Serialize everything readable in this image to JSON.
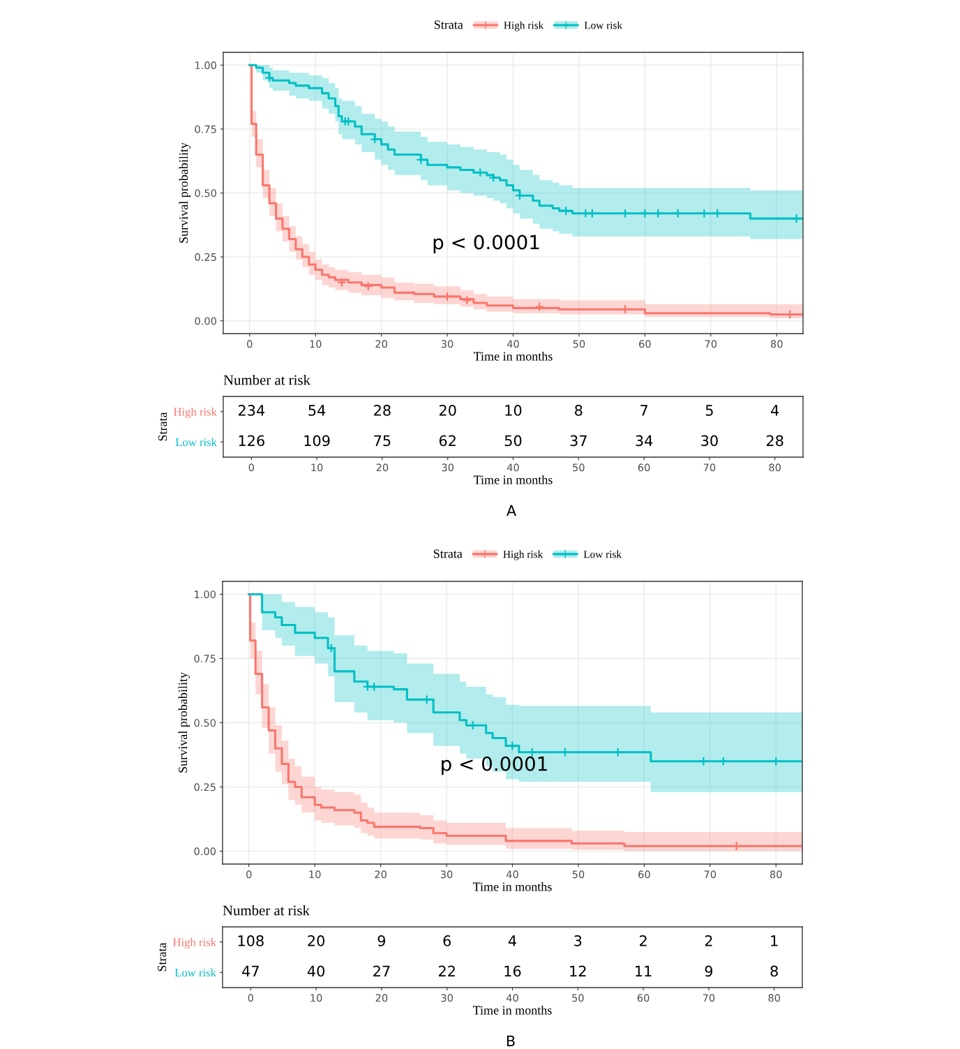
{
  "chart_data": [
    {
      "type": "step",
      "legend": "top",
      "legend_title": "Strata",
      "xlabel": "Time in months",
      "ylabel": "Survival probability",
      "xlim": [
        -4,
        84
      ],
      "xticks": [
        0,
        10,
        20,
        30,
        40,
        50,
        60,
        70,
        80
      ],
      "ylim": [
        -0.05,
        1.05
      ],
      "yticks": [
        {
          "value": 0,
          "label": "0.00"
        },
        {
          "value": 0.25,
          "label": "0.25"
        },
        {
          "value": 0.5,
          "label": "0.50"
        },
        {
          "value": 0.75,
          "label": "0.75"
        },
        {
          "value": 1,
          "label": "1.00"
        }
      ],
      "grid": true,
      "annotations": [
        "p < 0.0001"
      ],
      "series": [
        {
          "name": "High risk",
          "color": "#f8766d",
          "x": [
            0,
            0.3,
            1,
            2,
            3,
            4,
            5,
            6,
            7,
            8,
            9,
            10,
            11,
            12,
            13,
            15,
            17,
            20,
            22,
            25,
            28,
            32,
            34,
            36,
            40,
            47,
            60,
            79,
            84
          ],
          "values": [
            1,
            0.77,
            0.65,
            0.53,
            0.46,
            0.4,
            0.36,
            0.32,
            0.28,
            0.25,
            0.22,
            0.2,
            0.18,
            0.17,
            0.16,
            0.15,
            0.14,
            0.13,
            0.11,
            0.105,
            0.095,
            0.085,
            0.07,
            0.06,
            0.05,
            0.045,
            0.03,
            0.025,
            0.025
          ],
          "lower": [
            1,
            0.72,
            0.6,
            0.48,
            0.41,
            0.35,
            0.31,
            0.27,
            0.24,
            0.21,
            0.18,
            0.16,
            0.14,
            0.13,
            0.12,
            0.11,
            0.1,
            0.09,
            0.08,
            0.07,
            0.065,
            0.055,
            0.045,
            0.035,
            0.03,
            0.025,
            0.015,
            0.01,
            0.01
          ],
          "upper": [
            1,
            0.82,
            0.71,
            0.59,
            0.52,
            0.46,
            0.41,
            0.37,
            0.33,
            0.3,
            0.27,
            0.24,
            0.22,
            0.21,
            0.2,
            0.19,
            0.18,
            0.17,
            0.15,
            0.145,
            0.135,
            0.12,
            0.105,
            0.095,
            0.085,
            0.08,
            0.065,
            0.065,
            0.065
          ]
        },
        {
          "name": "Low risk",
          "color": "#00bfc4",
          "x": [
            0,
            1,
            2,
            3,
            3.5,
            6,
            7,
            9,
            11,
            12,
            13,
            13.5,
            14,
            16,
            17,
            19,
            20,
            21,
            22,
            26,
            27,
            30,
            32,
            34,
            36,
            37,
            38,
            39,
            40,
            41,
            43,
            44,
            46,
            47,
            49,
            76,
            84
          ],
          "values": [
            1,
            0.99,
            0.97,
            0.95,
            0.94,
            0.93,
            0.92,
            0.91,
            0.89,
            0.87,
            0.84,
            0.8,
            0.78,
            0.76,
            0.73,
            0.71,
            0.69,
            0.67,
            0.65,
            0.63,
            0.61,
            0.6,
            0.59,
            0.58,
            0.57,
            0.56,
            0.55,
            0.53,
            0.51,
            0.49,
            0.47,
            0.45,
            0.44,
            0.43,
            0.42,
            0.4,
            0.4
          ],
          "lower": [
            1,
            0.97,
            0.94,
            0.91,
            0.9,
            0.88,
            0.87,
            0.86,
            0.83,
            0.81,
            0.78,
            0.73,
            0.71,
            0.69,
            0.66,
            0.63,
            0.61,
            0.59,
            0.57,
            0.55,
            0.53,
            0.51,
            0.5,
            0.49,
            0.48,
            0.47,
            0.46,
            0.44,
            0.42,
            0.4,
            0.38,
            0.36,
            0.35,
            0.34,
            0.33,
            0.32,
            0.32
          ],
          "upper": [
            1,
            1,
            1,
            0.99,
            0.98,
            0.97,
            0.97,
            0.96,
            0.95,
            0.93,
            0.91,
            0.87,
            0.86,
            0.84,
            0.81,
            0.79,
            0.78,
            0.76,
            0.74,
            0.72,
            0.7,
            0.69,
            0.68,
            0.67,
            0.66,
            0.66,
            0.65,
            0.63,
            0.61,
            0.59,
            0.57,
            0.55,
            0.54,
            0.53,
            0.52,
            0.51,
            0.51
          ]
        },
        {
          "type": "scatter",
          "marker": "cross",
          "color": "#f8766d",
          "x": [
            14,
            18,
            30,
            33,
            44,
            57,
            82
          ],
          "values": [
            0.15,
            0.135,
            0.095,
            0.08,
            0.055,
            0.045,
            0.025
          ]
        },
        {
          "type": "scatter",
          "marker": "cross",
          "color": "#00bfc4",
          "x": [
            3,
            14.5,
            15,
            19,
            26,
            35,
            37,
            41,
            48,
            51,
            52,
            57,
            60,
            62,
            65,
            69,
            71,
            83
          ],
          "values": [
            0.95,
            0.78,
            0.78,
            0.71,
            0.63,
            0.58,
            0.56,
            0.49,
            0.43,
            0.42,
            0.42,
            0.42,
            0.42,
            0.42,
            0.42,
            0.42,
            0.42,
            0.4
          ]
        }
      ]
    },
    {
      "type": "heatmap",
      "title": "Number at risk",
      "ylabel": "Strata",
      "xlabel": "Time in months",
      "data_labels": true,
      "annotations": [
        "A"
      ],
      "categories": [
        "0",
        "10",
        "20",
        "30",
        "40",
        "50",
        "60",
        "70",
        "80"
      ],
      "y_categories": [
        "High risk",
        "Low risk"
      ],
      "cells": [
        [
          234,
          54,
          28,
          20,
          10,
          8,
          7,
          5,
          4
        ],
        [
          126,
          109,
          75,
          62,
          50,
          37,
          34,
          30,
          28
        ]
      ]
    },
    {
      "type": "step",
      "legend": "top",
      "legend_title": "Strata",
      "xlabel": "Time in months",
      "ylabel": "Survival probability",
      "xlim": [
        -4,
        84
      ],
      "xticks": [
        0,
        10,
        20,
        30,
        40,
        50,
        60,
        70,
        80
      ],
      "ylim": [
        -0.05,
        1.05
      ],
      "yticks": [
        {
          "value": 0,
          "label": "0.00"
        },
        {
          "value": 0.25,
          "label": "0.25"
        },
        {
          "value": 0.5,
          "label": "0.50"
        },
        {
          "value": 0.75,
          "label": "0.75"
        },
        {
          "value": 1,
          "label": "1.00"
        }
      ],
      "grid": true,
      "annotations": [
        "p < 0.0001"
      ],
      "series": [
        {
          "name": "High risk",
          "color": "#f8766d",
          "x": [
            0,
            0.2,
            1,
            2,
            3,
            4,
            5,
            6,
            7,
            8,
            10,
            11,
            13,
            16,
            17,
            18,
            19,
            26,
            28,
            30,
            39,
            49,
            57,
            84
          ],
          "values": [
            1,
            0.82,
            0.69,
            0.56,
            0.47,
            0.4,
            0.34,
            0.27,
            0.25,
            0.21,
            0.18,
            0.17,
            0.16,
            0.15,
            0.12,
            0.11,
            0.095,
            0.09,
            0.07,
            0.06,
            0.04,
            0.03,
            0.02,
            0.02
          ],
          "lower": [
            1,
            0.75,
            0.61,
            0.48,
            0.38,
            0.31,
            0.26,
            0.2,
            0.18,
            0.15,
            0.12,
            0.11,
            0.1,
            0.09,
            0.07,
            0.06,
            0.05,
            0.045,
            0.03,
            0.025,
            0.01,
            0.005,
            0,
            0
          ],
          "upper": [
            1,
            0.89,
            0.78,
            0.65,
            0.56,
            0.49,
            0.43,
            0.36,
            0.33,
            0.29,
            0.25,
            0.24,
            0.23,
            0.22,
            0.19,
            0.17,
            0.15,
            0.14,
            0.12,
            0.11,
            0.09,
            0.08,
            0.075,
            0.075
          ]
        },
        {
          "name": "Low risk",
          "color": "#00bfc4",
          "x": [
            0,
            2,
            4,
            5,
            7,
            10,
            12,
            13,
            16,
            18,
            22,
            24,
            28,
            32,
            33,
            36,
            37,
            39,
            41,
            61,
            84
          ],
          "values": [
            1,
            0.93,
            0.91,
            0.88,
            0.85,
            0.83,
            0.79,
            0.7,
            0.66,
            0.64,
            0.63,
            0.59,
            0.54,
            0.51,
            0.49,
            0.46,
            0.44,
            0.41,
            0.385,
            0.35,
            0.35
          ],
          "lower": [
            1,
            0.86,
            0.83,
            0.8,
            0.76,
            0.73,
            0.68,
            0.58,
            0.54,
            0.51,
            0.5,
            0.46,
            0.41,
            0.38,
            0.36,
            0.33,
            0.31,
            0.28,
            0.27,
            0.23,
            0.23
          ],
          "upper": [
            1,
            1,
            1,
            0.97,
            0.95,
            0.93,
            0.91,
            0.84,
            0.8,
            0.78,
            0.77,
            0.73,
            0.69,
            0.66,
            0.64,
            0.61,
            0.6,
            0.57,
            0.565,
            0.54,
            0.54
          ]
        },
        {
          "type": "scatter",
          "marker": "cross",
          "color": "#f8766d",
          "x": [
            74
          ],
          "values": [
            0.02
          ]
        },
        {
          "type": "scatter",
          "marker": "cross",
          "color": "#00bfc4",
          "x": [
            12.5,
            18,
            19,
            27,
            34,
            40,
            43,
            48,
            56,
            69,
            72,
            80
          ],
          "values": [
            0.79,
            0.64,
            0.64,
            0.59,
            0.49,
            0.41,
            0.385,
            0.385,
            0.385,
            0.35,
            0.35,
            0.35
          ]
        }
      ]
    },
    {
      "type": "heatmap",
      "title": "Number at risk",
      "ylabel": "Strata",
      "xlabel": "Time in months",
      "data_labels": true,
      "annotations": [
        "B"
      ],
      "categories": [
        "0",
        "10",
        "20",
        "30",
        "40",
        "50",
        "60",
        "70",
        "80"
      ],
      "y_categories": [
        "High risk",
        "Low risk"
      ],
      "cells": [
        [
          108,
          20,
          9,
          6,
          4,
          3,
          2,
          2,
          1
        ],
        [
          47,
          40,
          27,
          22,
          16,
          12,
          11,
          9,
          8
        ]
      ]
    }
  ]
}
